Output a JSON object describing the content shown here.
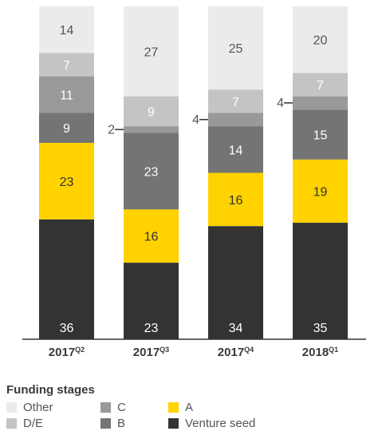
{
  "chart_data": {
    "type": "bar",
    "stacked": true,
    "percent_stacked": true,
    "categories": [
      {
        "year": "2017",
        "quarter": "Q2"
      },
      {
        "year": "2017",
        "quarter": "Q3"
      },
      {
        "year": "2017",
        "quarter": "Q4"
      },
      {
        "year": "2018",
        "quarter": "Q1"
      }
    ],
    "series": [
      {
        "key": "venture_seed",
        "name": "Venture seed",
        "color": "#333333",
        "label_color": "#ffffff",
        "values": [
          36,
          23,
          34,
          35
        ]
      },
      {
        "key": "a",
        "name": "A",
        "color": "#ffd200",
        "label_color": "#333333",
        "values": [
          23,
          16,
          16,
          19
        ]
      },
      {
        "key": "b",
        "name": "B",
        "color": "#747474",
        "label_color": "#ffffff",
        "values": [
          9,
          23,
          14,
          15
        ]
      },
      {
        "key": "c",
        "name": "C",
        "color": "#999999",
        "label_color": "#ffffff",
        "values": [
          11,
          2,
          4,
          4
        ]
      },
      {
        "key": "de",
        "name": "D/E",
        "color": "#c4c4c4",
        "label_color": "#ffffff",
        "values": [
          7,
          9,
          7,
          7
        ]
      },
      {
        "key": "other",
        "name": "Other",
        "color": "#ebebeb",
        "label_color": "#555555",
        "values": [
          14,
          27,
          25,
          20
        ]
      }
    ],
    "legend_title": "Funding stages",
    "legend_position": "bottom-left",
    "axis_color": "#333333"
  }
}
